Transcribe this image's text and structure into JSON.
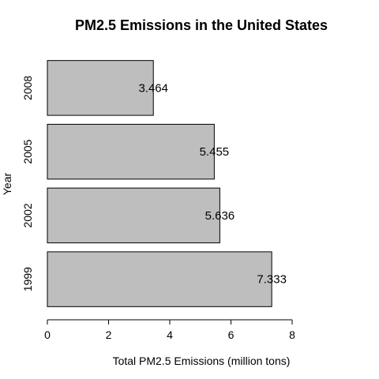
{
  "chart_data": {
    "type": "bar",
    "orientation": "horizontal",
    "title": "PM2.5 Emissions in the United States",
    "xlabel": "Total PM2.5 Emissions (million tons)",
    "ylabel": "Year",
    "categories": [
      "1999",
      "2002",
      "2005",
      "2008"
    ],
    "values": [
      7.333,
      5.636,
      5.455,
      3.464
    ],
    "data_labels": [
      "7.333",
      "5.636",
      "5.455",
      "3.464"
    ],
    "xlim": [
      0,
      8
    ],
    "xticks": [
      0,
      2,
      4,
      6,
      8
    ],
    "xtick_labels": [
      "0",
      "2",
      "4",
      "6",
      "8"
    ],
    "grid": false,
    "legend": "none",
    "bar_color": "#bebebe",
    "bar_border_color": "#000000"
  }
}
